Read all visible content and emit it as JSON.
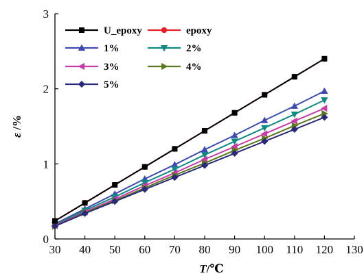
{
  "chart_data": {
    "type": "line",
    "xlabel_italic": "T",
    "xlabel_unit": "/℃",
    "ylabel_italic": "ε",
    "ylabel_unit": " /%",
    "xlim": [
      30,
      130
    ],
    "ylim": [
      0,
      3
    ],
    "x_ticks": [
      30,
      40,
      50,
      60,
      70,
      80,
      90,
      100,
      110,
      120,
      130
    ],
    "y_ticks": [
      0,
      1,
      2,
      3
    ],
    "grid": false,
    "legend_position": "top-left",
    "x": [
      30,
      40,
      50,
      60,
      70,
      80,
      90,
      100,
      110,
      120
    ],
    "series": [
      {
        "name": "U_epoxy",
        "color": "#000000",
        "marker": "square",
        "values": [
          0.24,
          0.48,
          0.72,
          0.96,
          1.2,
          1.44,
          1.68,
          1.92,
          2.16,
          2.4
        ]
      },
      {
        "name": "epoxy",
        "color": "#e8202a",
        "marker": "circle",
        "values": [
          0.24,
          0.48,
          0.72,
          0.96,
          1.2,
          1.44,
          1.68,
          1.92,
          2.16,
          2.4
        ]
      },
      {
        "name": "1%",
        "color": "#3d4bb0",
        "marker": "triangle-up",
        "values": [
          0.2,
          0.4,
          0.6,
          0.8,
          0.99,
          1.19,
          1.38,
          1.58,
          1.77,
          1.97
        ]
      },
      {
        "name": "2%",
        "color": "#0f8a82",
        "marker": "triangle-down",
        "values": [
          0.19,
          0.38,
          0.56,
          0.75,
          0.93,
          1.12,
          1.3,
          1.48,
          1.66,
          1.85
        ]
      },
      {
        "name": "3%",
        "color": "#c73aa8",
        "marker": "triangle-left",
        "values": [
          0.18,
          0.36,
          0.53,
          0.71,
          0.88,
          1.06,
          1.23,
          1.4,
          1.57,
          1.74
        ]
      },
      {
        "name": "4%",
        "color": "#5a7a1a",
        "marker": "triangle-right",
        "values": [
          0.17,
          0.35,
          0.51,
          0.68,
          0.85,
          1.01,
          1.18,
          1.34,
          1.51,
          1.67
        ]
      },
      {
        "name": "5%",
        "color": "#2a2a7a",
        "marker": "diamond",
        "values": [
          0.17,
          0.34,
          0.5,
          0.66,
          0.82,
          0.98,
          1.14,
          1.3,
          1.46,
          1.62
        ]
      }
    ]
  }
}
